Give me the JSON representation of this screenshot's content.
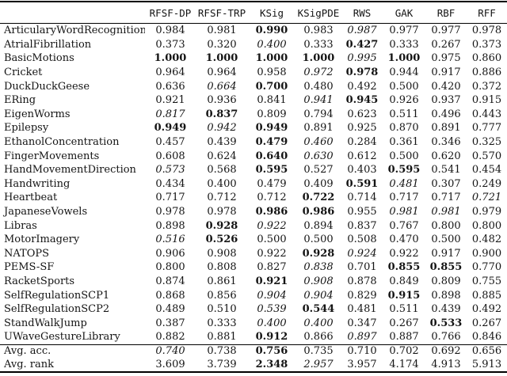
{
  "colors": {
    "background": "#ffffff",
    "text": "#141414",
    "rule": "#000000"
  },
  "table": {
    "columns": [
      "RFSF-DP",
      "RFSF-TRP",
      "KSig",
      "KSigPDE",
      "RWS",
      "GAK",
      "RBF",
      "RFF"
    ],
    "style_legend": {
      "n": "normal",
      "b": "bold-best",
      "i": "italic-second-best"
    },
    "rows": [
      {
        "name": "ArticularyWordRecognition",
        "values": [
          "0.984",
          "0.981",
          "0.990",
          "0.983",
          "0.987",
          "0.977",
          "0.977",
          "0.978"
        ],
        "styles": "nnbninnn"
      },
      {
        "name": "AtrialFibrillation",
        "values": [
          "0.373",
          "0.320",
          "0.400",
          "0.333",
          "0.427",
          "0.333",
          "0.267",
          "0.373"
        ],
        "styles": "nninbnnn"
      },
      {
        "name": "BasicMotions",
        "values": [
          "1.000",
          "1.000",
          "1.000",
          "1.000",
          "0.995",
          "1.000",
          "0.975",
          "0.860"
        ],
        "styles": "bbbbibnn"
      },
      {
        "name": "Cricket",
        "values": [
          "0.964",
          "0.964",
          "0.958",
          "0.972",
          "0.978",
          "0.944",
          "0.917",
          "0.886"
        ],
        "styles": "nnnibnnn"
      },
      {
        "name": "DuckDuckGeese",
        "values": [
          "0.636",
          "0.664",
          "0.700",
          "0.480",
          "0.492",
          "0.500",
          "0.420",
          "0.372"
        ],
        "styles": "nibnnnnn"
      },
      {
        "name": "ERing",
        "values": [
          "0.921",
          "0.936",
          "0.841",
          "0.941",
          "0.945",
          "0.926",
          "0.937",
          "0.915"
        ],
        "styles": "nnnibnnn"
      },
      {
        "name": "EigenWorms",
        "values": [
          "0.817",
          "0.837",
          "0.809",
          "0.794",
          "0.623",
          "0.511",
          "0.496",
          "0.443"
        ],
        "styles": "ibnnnnnn"
      },
      {
        "name": "Epilepsy",
        "values": [
          "0.949",
          "0.942",
          "0.949",
          "0.891",
          "0.925",
          "0.870",
          "0.891",
          "0.777"
        ],
        "styles": "bibnnnnn"
      },
      {
        "name": "EthanolConcentration",
        "values": [
          "0.457",
          "0.439",
          "0.479",
          "0.460",
          "0.284",
          "0.361",
          "0.346",
          "0.325"
        ],
        "styles": "nnbinnnn"
      },
      {
        "name": "FingerMovements",
        "values": [
          "0.608",
          "0.624",
          "0.640",
          "0.630",
          "0.612",
          "0.500",
          "0.620",
          "0.570"
        ],
        "styles": "nnbinnnn"
      },
      {
        "name": "HandMovementDirection",
        "values": [
          "0.573",
          "0.568",
          "0.595",
          "0.527",
          "0.403",
          "0.595",
          "0.541",
          "0.454"
        ],
        "styles": "inbnnbnn"
      },
      {
        "name": "Handwriting",
        "values": [
          "0.434",
          "0.400",
          "0.479",
          "0.409",
          "0.591",
          "0.481",
          "0.307",
          "0.249"
        ],
        "styles": "nnnnbinn"
      },
      {
        "name": "Heartbeat",
        "values": [
          "0.717",
          "0.712",
          "0.712",
          "0.722",
          "0.714",
          "0.717",
          "0.717",
          "0.721"
        ],
        "styles": "nnnbnnni"
      },
      {
        "name": "JapaneseVowels",
        "values": [
          "0.978",
          "0.978",
          "0.986",
          "0.986",
          "0.955",
          "0.981",
          "0.981",
          "0.979"
        ],
        "styles": "nnbbniin"
      },
      {
        "name": "Libras",
        "values": [
          "0.898",
          "0.928",
          "0.922",
          "0.894",
          "0.837",
          "0.767",
          "0.800",
          "0.800"
        ],
        "styles": "nbinnnnn"
      },
      {
        "name": "MotorImagery",
        "values": [
          "0.516",
          "0.526",
          "0.500",
          "0.500",
          "0.508",
          "0.470",
          "0.500",
          "0.482"
        ],
        "styles": "ibnnnnnn"
      },
      {
        "name": "NATOPS",
        "values": [
          "0.906",
          "0.908",
          "0.922",
          "0.928",
          "0.924",
          "0.922",
          "0.917",
          "0.900"
        ],
        "styles": "nnnbinnn"
      },
      {
        "name": "PEMS-SF",
        "values": [
          "0.800",
          "0.808",
          "0.827",
          "0.838",
          "0.701",
          "0.855",
          "0.855",
          "0.770"
        ],
        "styles": "nnninbbn"
      },
      {
        "name": "RacketSports",
        "values": [
          "0.874",
          "0.861",
          "0.921",
          "0.908",
          "0.878",
          "0.849",
          "0.809",
          "0.755"
        ],
        "styles": "nnbinnnn"
      },
      {
        "name": "SelfRegulationSCP1",
        "values": [
          "0.868",
          "0.856",
          "0.904",
          "0.904",
          "0.829",
          "0.915",
          "0.898",
          "0.885"
        ],
        "styles": "nniinbnn"
      },
      {
        "name": "SelfRegulationSCP2",
        "values": [
          "0.489",
          "0.510",
          "0.539",
          "0.544",
          "0.481",
          "0.511",
          "0.439",
          "0.492"
        ],
        "styles": "nnibnnnn"
      },
      {
        "name": "StandWalkJump",
        "values": [
          "0.387",
          "0.333",
          "0.400",
          "0.400",
          "0.347",
          "0.267",
          "0.533",
          "0.267"
        ],
        "styles": "nniinnbn"
      },
      {
        "name": "UWaveGestureLibrary",
        "values": [
          "0.882",
          "0.881",
          "0.912",
          "0.866",
          "0.897",
          "0.887",
          "0.766",
          "0.846"
        ],
        "styles": "nnbninnn"
      }
    ],
    "footer": [
      {
        "name": "Avg. acc.",
        "values": [
          "0.740",
          "0.738",
          "0.756",
          "0.735",
          "0.710",
          "0.702",
          "0.692",
          "0.656"
        ],
        "styles": "inbnnnnn"
      },
      {
        "name": "Avg. rank",
        "values": [
          "3.609",
          "3.739",
          "2.348",
          "2.957",
          "3.957",
          "4.174",
          "4.913",
          "5.913"
        ],
        "styles": "nnbinnnn"
      }
    ]
  }
}
